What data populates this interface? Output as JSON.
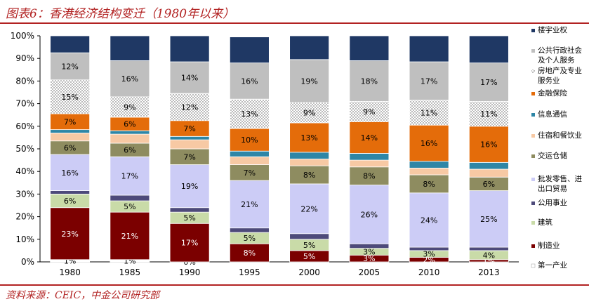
{
  "header": {
    "title": "图表6：香港经济结构变迁（1980年以来）"
  },
  "footer": {
    "source": "资料来源：CEIC，中金公司研究部"
  },
  "chart_data": {
    "type": "bar",
    "stacked": true,
    "title": "图表6：香港经济结构变迁（1980年以来）",
    "xlabel": "",
    "ylabel": "",
    "ylim": [
      0,
      100
    ],
    "y_ticks": [
      "0%",
      "10%",
      "20%",
      "30%",
      "40%",
      "50%",
      "60%",
      "70%",
      "80%",
      "90%",
      "100%"
    ],
    "grid": false,
    "legend_position": "right",
    "categories": [
      "1980",
      "1985",
      "1990",
      "1995",
      "2000",
      "2005",
      "2010",
      "2013"
    ],
    "series": [
      {
        "name": "第一产业",
        "color": "#ffffff",
        "values": [
          1,
          1,
          0,
          0,
          0,
          0,
          0,
          0
        ],
        "labels": [
          "1%",
          "1%",
          "0%",
          "",
          "",
          "",
          "",
          ""
        ]
      },
      {
        "name": "制造业",
        "color": "#7b0000",
        "values": [
          23,
          21,
          17,
          8,
          5,
          3,
          2,
          1
        ],
        "labels": [
          "23%",
          "21%",
          "17%",
          "8%",
          "5%",
          "3%",
          "2%",
          "1%"
        ]
      },
      {
        "name": "建筑",
        "color": "#c9dba8",
        "values": [
          6,
          5,
          5,
          5,
          5,
          3,
          3,
          4
        ],
        "labels": [
          "6%",
          "5%",
          "5%",
          "5%",
          "5%",
          "3%",
          "3%",
          "4%"
        ]
      },
      {
        "name": "公用事业",
        "color": "#4d4a7a",
        "values": [
          1.5,
          2.5,
          2,
          2,
          2.5,
          2,
          1.5,
          1.5
        ],
        "labels": [
          "",
          "",
          "",
          "",
          "",
          "",
          "",
          ""
        ]
      },
      {
        "name": "批发零售、进出口贸易",
        "color": "#ccccf6",
        "values": [
          16,
          17,
          19,
          21,
          22,
          26,
          24,
          25
        ],
        "labels": [
          "16%",
          "17%",
          "19%",
          "21%",
          "22%",
          "26%",
          "24%",
          "25%"
        ]
      },
      {
        "name": "交运仓储",
        "color": "#8e8c60",
        "values": [
          6,
          6,
          7,
          7,
          8,
          8,
          8,
          6
        ],
        "labels": [
          "6%",
          "6%",
          "7%",
          "7%",
          "8%",
          "8%",
          "8%",
          "6%"
        ]
      },
      {
        "name": "住宿和餐饮业",
        "color": "#f7c9a4",
        "values": [
          3.5,
          4,
          4,
          3.5,
          3,
          3,
          3,
          3.5
        ],
        "labels": [
          "",
          "",
          "",
          "",
          "",
          "",
          "",
          ""
        ]
      },
      {
        "name": "信息通信",
        "color": "#2e86a6",
        "values": [
          1.5,
          1.5,
          1.5,
          2.5,
          3,
          3,
          3,
          3
        ],
        "labels": [
          "",
          "",
          "",
          "",
          "",
          "",
          "",
          ""
        ]
      },
      {
        "name": "金融保险",
        "color": "#e46c0a",
        "values": [
          7,
          6,
          7,
          10,
          13,
          14,
          16,
          16
        ],
        "labels": [
          "7%",
          "6%",
          "7%",
          "10%",
          "13%",
          "14%",
          "16%",
          "16%"
        ]
      },
      {
        "name": "房地产及专业服务业",
        "color": "#eeeeee",
        "pattern": "dots",
        "values": [
          15,
          9,
          12,
          13,
          9,
          9,
          11,
          11
        ],
        "labels": [
          "15%",
          "9%",
          "12%",
          "13%",
          "9%",
          "9%",
          "11%",
          "11%"
        ]
      },
      {
        "name": "公共行政社会及个人服务",
        "color": "#bfbfbf",
        "values": [
          12,
          16,
          14,
          16,
          19,
          18,
          17,
          17
        ],
        "labels": [
          "12%",
          "16%",
          "14%",
          "16%",
          "19%",
          "18%",
          "17%",
          "17%"
        ]
      },
      {
        "name": "楼宇业权",
        "color": "#1f3864",
        "values": [
          7.5,
          11,
          11.5,
          11.5,
          10.5,
          11,
          11.5,
          12
        ],
        "labels": [
          "",
          "",
          "",
          "",
          "",
          "",
          "",
          ""
        ]
      }
    ]
  }
}
